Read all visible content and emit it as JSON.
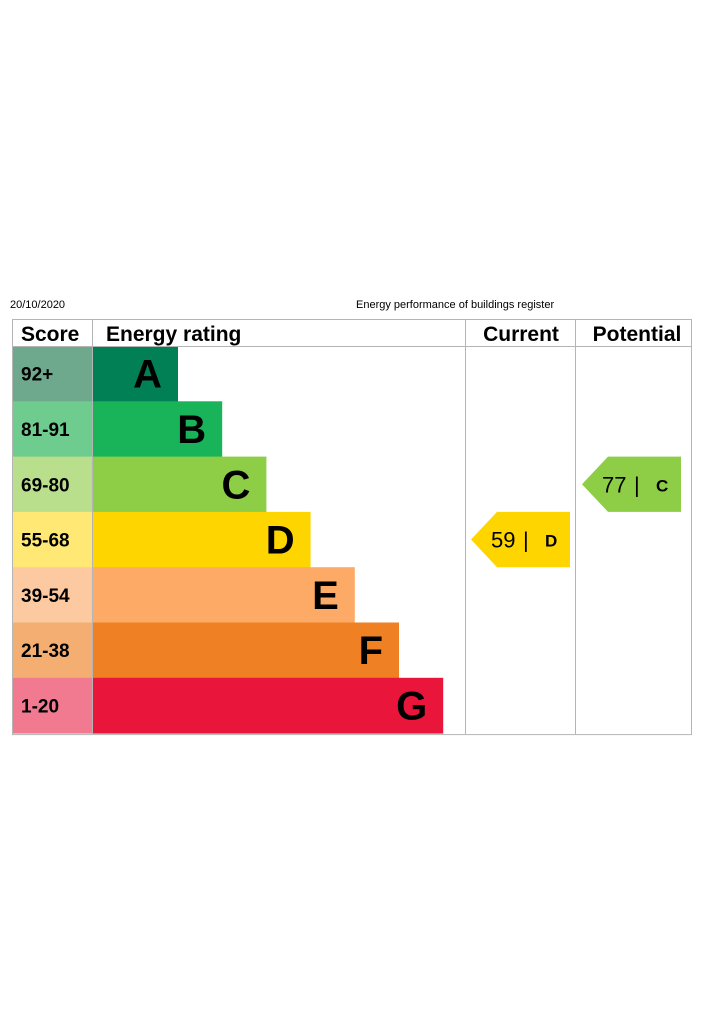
{
  "header": {
    "date": "20/10/2020",
    "register_title": "Energy performance of buildings register"
  },
  "chart_data": {
    "type": "table",
    "columns": {
      "score": "Score",
      "energy_rating": "Energy rating",
      "current": "Current",
      "potential": "Potential"
    },
    "bands": [
      {
        "letter": "A",
        "score": "92+",
        "min": 92,
        "max": 100,
        "color": "#008054",
        "score_bg": "#6fa98d"
      },
      {
        "letter": "B",
        "score": "81-91",
        "min": 81,
        "max": 91,
        "color": "#19b459",
        "score_bg": "#6fcc8f"
      },
      {
        "letter": "C",
        "score": "69-80",
        "min": 69,
        "max": 80,
        "color": "#8dce46",
        "score_bg": "#b9df8c"
      },
      {
        "letter": "D",
        "score": "55-68",
        "min": 55,
        "max": 68,
        "color": "#ffd500",
        "score_bg": "#ffe873"
      },
      {
        "letter": "E",
        "score": "39-54",
        "min": 39,
        "max": 54,
        "color": "#fcaa65",
        "score_bg": "#fdc9a0"
      },
      {
        "letter": "F",
        "score": "21-38",
        "min": 21,
        "max": 38,
        "color": "#ef8023",
        "score_bg": "#f4ae72"
      },
      {
        "letter": "G",
        "score": "1-20",
        "min": 1,
        "max": 20,
        "color": "#e9153b",
        "score_bg": "#f17a91"
      }
    ],
    "current": {
      "value": 59,
      "value_text": "59",
      "letter": "D",
      "separator": "|",
      "color": "#ffd500"
    },
    "potential": {
      "value": 77,
      "value_text": "77",
      "letter": "C",
      "separator": "|",
      "color": "#8dce46"
    }
  }
}
